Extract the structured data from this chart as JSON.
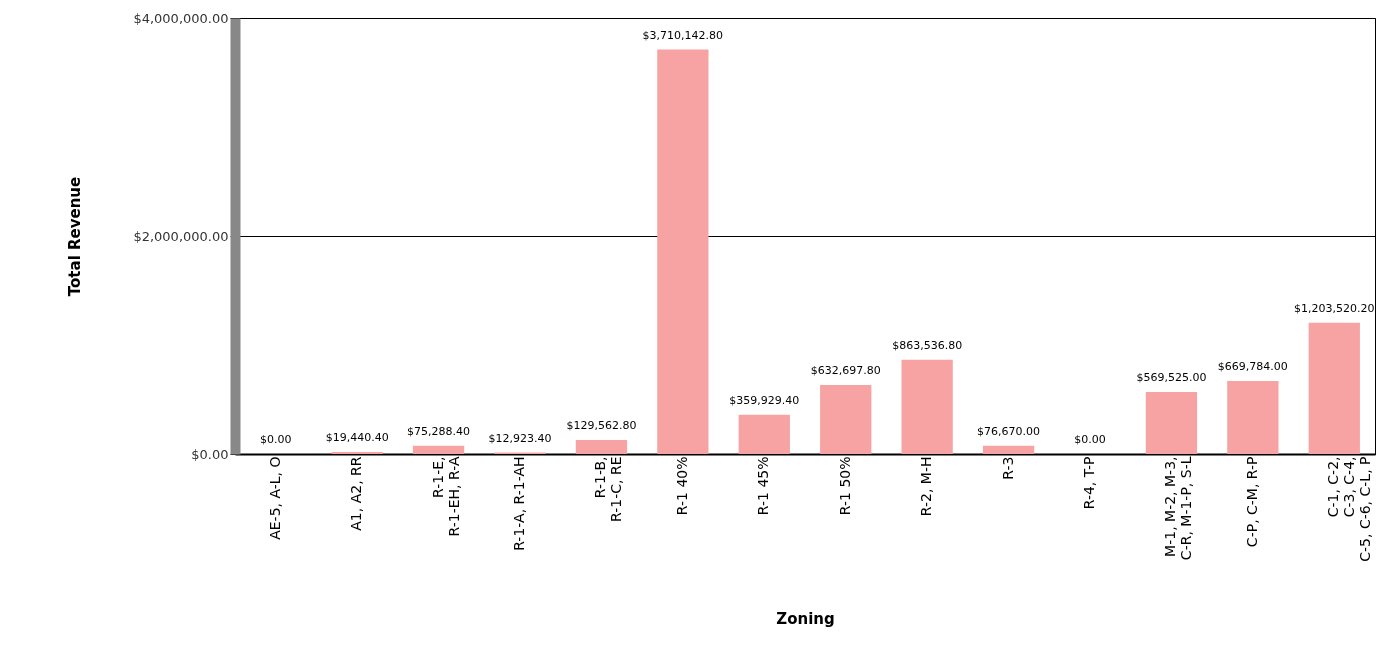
{
  "chart_data": {
    "type": "bar",
    "xlabel": "Zoning",
    "ylabel": "Total Revenue",
    "categories": [
      "AE-5, A-L, O",
      "A1, A2, RR",
      "R-1-E,\nR-1-EH, R-A",
      "R-1-A, R-1-AH",
      "R-1-B,\nR-1-C, RE",
      "R-1 40%",
      "R-1 45%",
      "R-1 50%",
      "R-2, M-H",
      "R-3",
      "R-4, T-P",
      "M-1, M-2, M-3,\nC-R, M-1-P, S-L",
      "C-P, C-M, R-P",
      "C-1, C-2,\nC-3, C-4,\nC-5, C-6, C-L, P"
    ],
    "values": [
      0,
      19440.4,
      75288.4,
      12923.4,
      129562.8,
      3710142.8,
      359929.4,
      632697.8,
      863536.8,
      76670,
      0,
      569525,
      669784,
      1203520.2
    ],
    "value_labels": [
      "$0.00",
      "$19,440.40",
      "$75,288.40",
      "$12,923.40",
      "$129,562.80",
      "$3,710,142.80",
      "$359,929.40",
      "$632,697.80",
      "$863,536.80",
      "$76,670.00",
      "$0.00",
      "$569,525.00",
      "$669,784.00",
      "$1,203,520.20"
    ],
    "color": "#f7a3a3",
    "ylim": [
      0,
      4000000
    ],
    "yticks": [
      {
        "value": 0,
        "label": "$0.00"
      },
      {
        "value": 2000000,
        "label": "$2,000,000.00"
      },
      {
        "value": 4000000,
        "label": "$4,000,000.00"
      }
    ],
    "grid": "y"
  }
}
